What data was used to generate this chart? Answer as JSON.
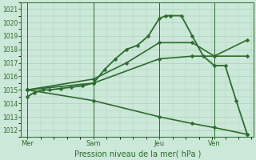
{
  "xlabel": "Pression niveau de la mer( hPa )",
  "ylim": [
    1011.5,
    1021.5
  ],
  "yticks": [
    1012,
    1013,
    1014,
    1015,
    1016,
    1017,
    1018,
    1019,
    1020,
    1021
  ],
  "xtick_labels": [
    "Mer",
    "Sam",
    "Jeu",
    "Ven"
  ],
  "xtick_positions": [
    0,
    3,
    6,
    8.5
  ],
  "bg_color": "#cce8d8",
  "line_color": "#2d6b2d",
  "grid_color": "#a8cfc0",
  "lines": [
    {
      "x": [
        0,
        0.3,
        0.7,
        1.0,
        1.5,
        2.0,
        2.5,
        3.0,
        3.5,
        4.0,
        4.5,
        5.0,
        5.5,
        6.0,
        6.3,
        6.5,
        7.0,
        7.5,
        8.0,
        8.5,
        9.0,
        9.5,
        10.0
      ],
      "y": [
        1014.5,
        1014.8,
        1015.0,
        1015.0,
        1015.1,
        1015.2,
        1015.3,
        1015.5,
        1016.5,
        1017.3,
        1018.0,
        1018.3,
        1019.0,
        1020.3,
        1020.5,
        1020.5,
        1020.5,
        1019.0,
        1017.5,
        1016.8,
        1016.8,
        1014.2,
        1011.7
      ],
      "marker": "D",
      "markersize": 2.5,
      "linewidth": 1.3
    },
    {
      "x": [
        0,
        3.0,
        4.5,
        6.0,
        7.5,
        8.5,
        10.0
      ],
      "y": [
        1015.0,
        1015.8,
        1017.0,
        1018.5,
        1018.5,
        1017.5,
        1018.7
      ],
      "marker": "D",
      "markersize": 2.5,
      "linewidth": 1.2
    },
    {
      "x": [
        0,
        3.0,
        6.0,
        7.5,
        8.5,
        10.0
      ],
      "y": [
        1015.0,
        1015.5,
        1017.3,
        1017.5,
        1017.5,
        1017.5
      ],
      "marker": "D",
      "markersize": 2.5,
      "linewidth": 1.2
    },
    {
      "x": [
        0,
        3.0,
        6.0,
        7.5,
        8.5,
        10.0
      ],
      "y": [
        1015.0,
        1014.2,
        1013.0,
        1012.5,
        1012.2,
        1011.7
      ],
      "marker": "D",
      "markersize": 2.5,
      "linewidth": 1.2
    }
  ],
  "vlines_x": [
    0,
    3.0,
    6.0,
    8.5
  ],
  "xlim": [
    -0.3,
    10.3
  ],
  "figsize": [
    3.2,
    2.0
  ],
  "dpi": 100,
  "ylabel_fontsize": 5.5,
  "xlabel_fontsize": 7,
  "tick_fontsize": 5.5
}
